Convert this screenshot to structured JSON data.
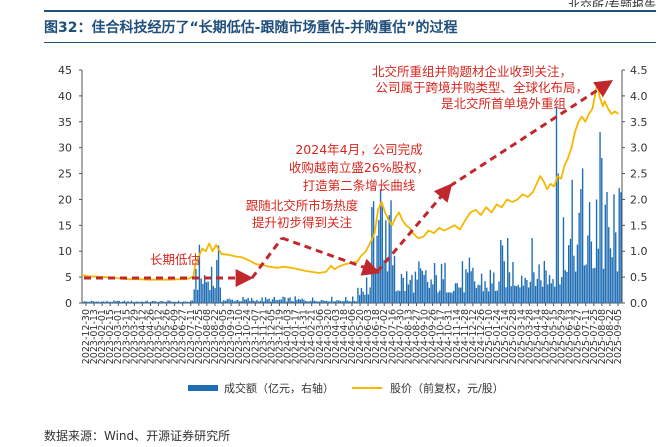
{
  "header": {
    "text": "北交所/专题报告"
  },
  "figure": {
    "title": "图32：佳合科技经历了“长期低估-跟随市场重估-并购重估”的过程",
    "source": "数据来源：Wind、开源证券研究所"
  },
  "chart_data": {
    "type": "bar+line",
    "x_ticks": [
      "2022-12-30",
      "2023-01-13",
      "2023-02-01",
      "2023-02-15",
      "2023-03-01",
      "2023-03-15",
      "2023-03-29",
      "2023-04-12",
      "2023-04-26",
      "2023-05-12",
      "2023-05-26",
      "2023-06-09",
      "2023-06-27",
      "2023-07-11",
      "2023-07-25",
      "2023-08-08",
      "2023-08-22",
      "2023-09-05",
      "2023-09-19",
      "2023-10-10",
      "2023-10-24",
      "2023-11-07",
      "2023-11-21",
      "2023-12-05",
      "2023-12-19",
      "2024-01-03",
      "2024-01-17",
      "2024-01-31",
      "2024-02-21",
      "2024-03-06",
      "2024-03-20",
      "2024-04-03",
      "2024-04-18",
      "2024-05-06",
      "2024-05-20",
      "2024-06-03",
      "2024-06-18",
      "2024-07-02",
      "2024-07-16",
      "2024-07-30",
      "2024-08-13",
      "2024-08-27",
      "2024-09-10",
      "2024-09-26",
      "2024-10-17",
      "2024-10-31",
      "2024-11-14",
      "2024-11-28",
      "2024-12-12",
      "2024-12-26",
      "2025-01-10",
      "2025-01-24",
      "2025-02-14",
      "2025-02-28",
      "2025-03-14",
      "2025-03-28",
      "2025-04-14",
      "2025-04-28",
      "2025-05-15",
      "2025-05-29",
      "2025-06-13",
      "2025-06-27",
      "2025-07-11",
      "2025-07-25",
      "2025-08-08",
      "2025-08-22",
      "2025-09-05"
    ],
    "left_axis": {
      "ticks": [
        "0",
        "5",
        "10",
        "15",
        "20",
        "25",
        "30",
        "35",
        "40",
        "45"
      ],
      "ylim": [
        0,
        45
      ]
    },
    "right_axis": {
      "ticks": [
        "0.0",
        "0.5",
        "1.0",
        "1.5",
        "2.0",
        "2.5",
        "3.0",
        "3.5",
        "4.0",
        "4.5"
      ],
      "ylim": [
        0,
        4.5
      ]
    },
    "series": [
      {
        "name": "成交额（亿元，右轴）",
        "type": "bar",
        "axis": "right",
        "color": "#1f6eb5"
      },
      {
        "name": "股价（前复权，元/股）",
        "type": "line",
        "axis": "left",
        "color": "#f5b800",
        "points": [
          [
            0,
            5.4
          ],
          [
            3,
            5.2
          ],
          [
            8,
            5.1
          ],
          [
            14,
            5.0
          ],
          [
            20,
            4.8
          ],
          [
            26,
            4.6
          ],
          [
            32,
            4.6
          ],
          [
            38,
            4.5
          ],
          [
            44,
            4.5
          ],
          [
            50,
            4.5
          ],
          [
            56,
            4.6
          ],
          [
            60,
            4.6
          ],
          [
            62,
            4.8
          ],
          [
            64,
            5.2
          ],
          [
            65,
            7.5
          ],
          [
            67,
            9.0
          ],
          [
            69,
            10.5
          ],
          [
            71,
            10.0
          ],
          [
            73,
            11.5
          ],
          [
            75,
            10.0
          ],
          [
            77,
            11.2
          ],
          [
            80,
            9.5
          ],
          [
            84,
            9.3
          ],
          [
            88,
            9.0
          ],
          [
            92,
            8.8
          ],
          [
            96,
            8.2
          ],
          [
            100,
            7.5
          ],
          [
            104,
            7.3
          ],
          [
            108,
            7.0
          ],
          [
            112,
            6.8
          ],
          [
            116,
            7.0
          ],
          [
            120,
            6.8
          ],
          [
            124,
            6.5
          ],
          [
            128,
            6.2
          ],
          [
            132,
            6.0
          ],
          [
            136,
            5.8
          ],
          [
            140,
            6.0
          ],
          [
            143,
            7.2
          ],
          [
            145,
            6.5
          ],
          [
            147,
            7.0
          ],
          [
            151,
            7.5
          ],
          [
            155,
            7.8
          ],
          [
            158,
            8.0
          ],
          [
            160,
            9.0
          ],
          [
            163,
            10.0
          ],
          [
            166,
            12.0
          ],
          [
            168,
            13.5
          ],
          [
            170,
            18.0
          ],
          [
            172,
            19.5
          ],
          [
            174,
            17.5
          ],
          [
            176,
            16.0
          ],
          [
            178,
            15.0
          ],
          [
            180,
            16.5
          ],
          [
            182,
            17.5
          ],
          [
            184,
            16.0
          ],
          [
            186,
            15.0
          ],
          [
            188,
            14.5
          ],
          [
            190,
            13.5
          ],
          [
            193,
            12.5
          ],
          [
            196,
            12.8
          ],
          [
            199,
            14.0
          ],
          [
            202,
            13.5
          ],
          [
            205,
            14.5
          ],
          [
            208,
            14.0
          ],
          [
            211,
            14.5
          ],
          [
            214,
            15.0
          ],
          [
            217,
            14.2
          ],
          [
            220,
            16.0
          ],
          [
            223,
            17.5
          ],
          [
            226,
            18.0
          ],
          [
            229,
            17.0
          ],
          [
            232,
            18.5
          ],
          [
            235,
            17.5
          ],
          [
            238,
            19.0
          ],
          [
            241,
            18.5
          ],
          [
            244,
            20.0
          ],
          [
            247,
            19.5
          ],
          [
            250,
            20.0
          ],
          [
            253,
            21.0
          ],
          [
            256,
            20.5
          ],
          [
            259,
            21.5
          ],
          [
            261,
            23.0
          ],
          [
            263,
            24.5
          ],
          [
            265,
            23.5
          ],
          [
            267,
            22.0
          ],
          [
            269,
            23.0
          ],
          [
            271,
            22.5
          ],
          [
            273,
            24.5
          ],
          [
            275,
            24.0
          ],
          [
            277,
            26.5
          ],
          [
            279,
            28.0
          ],
          [
            281,
            30.0
          ],
          [
            283,
            33.0
          ],
          [
            285,
            35.0
          ],
          [
            287,
            36.0
          ],
          [
            289,
            35.0
          ],
          [
            291,
            36.5
          ],
          [
            293,
            37.5
          ],
          [
            295,
            41.0
          ],
          [
            296,
            42.5
          ],
          [
            297,
            40.0
          ],
          [
            299,
            38.0
          ],
          [
            300,
            39.0
          ],
          [
            302,
            37.5
          ],
          [
            304,
            36.5
          ],
          [
            306,
            37.0
          ],
          [
            308,
            36.5
          ]
        ]
      }
    ],
    "bar_segments": [
      {
        "start": 0,
        "end": 64,
        "base": 0.02,
        "amp": 0.03
      },
      {
        "start": 64,
        "end": 80,
        "base": 0.25,
        "amp": 0.9
      },
      {
        "start": 80,
        "end": 158,
        "base": 0.03,
        "amp": 0.1
      },
      {
        "start": 158,
        "end": 166,
        "base": 0.15,
        "amp": 0.6
      },
      {
        "start": 166,
        "end": 180,
        "base": 0.6,
        "amp": 1.6
      },
      {
        "start": 180,
        "end": 240,
        "base": 0.2,
        "amp": 0.7
      },
      {
        "start": 240,
        "end": 276,
        "base": 0.3,
        "amp": 1.0
      },
      {
        "start": 276,
        "end": 310,
        "base": 0.6,
        "amp": 1.8
      }
    ],
    "bar_peaks": [
      [
        169,
        1.3
      ],
      [
        170,
        1.6
      ],
      [
        171,
        2.2
      ],
      [
        172,
        1.9
      ],
      [
        272,
        3.8
      ],
      [
        273,
        2.5
      ],
      [
        286,
        2.2
      ],
      [
        287,
        2.6
      ],
      [
        295,
        2.0
      ],
      [
        297,
        3.3
      ],
      [
        298,
        2.8
      ],
      [
        300,
        1.9
      ],
      [
        305,
        2.1
      ]
    ],
    "annotations": [
      {
        "id": "ann1",
        "lines": [
          "长期低估"
        ]
      },
      {
        "id": "ann2",
        "lines": [
          "跟随北交所市场热度",
          "提升初步得到关注"
        ]
      },
      {
        "id": "ann3",
        "lines": [
          "2024年4月，公司完成",
          "收购越南立盛26%股权，",
          "打造第二条增长曲线"
        ]
      },
      {
        "id": "ann4",
        "lines": [
          "北交所重组并购题材企业收到关注，",
          "公司属于跨境并购类型、全球化布局，",
          "是北交所首单境外重组"
        ]
      }
    ],
    "legend_position": "bottom",
    "grid": false
  }
}
